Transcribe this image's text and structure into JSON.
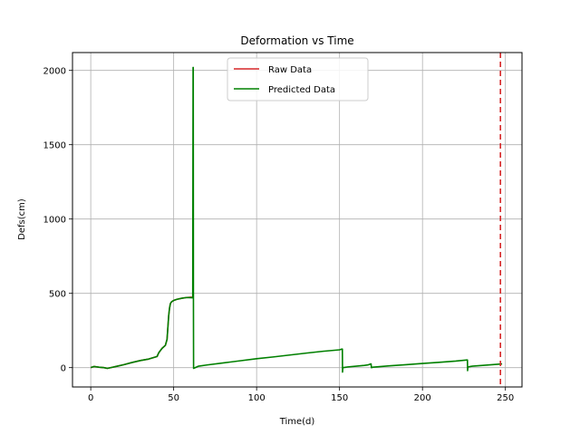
{
  "chart_data": {
    "type": "line",
    "title": "Deformation vs Time",
    "xlabel": "Time(d)",
    "ylabel": "Defs(cm)",
    "xlim": [
      -11,
      260
    ],
    "ylim": [
      -130,
      2120
    ],
    "xticks": [
      0,
      50,
      100,
      150,
      200,
      250
    ],
    "yticks": [
      0,
      500,
      1000,
      1500,
      2000
    ],
    "grid": true,
    "legend_position": "top-center",
    "series": [
      {
        "name": "Raw Data",
        "color": "#d62728",
        "x": [
          0,
          2,
          5,
          8,
          10,
          14,
          16,
          20,
          25,
          30,
          35,
          40,
          41,
          43,
          45,
          46,
          47,
          47.5,
          48,
          48.5,
          49,
          50,
          52,
          55,
          58,
          61
        ],
        "y": [
          0,
          8,
          3,
          0,
          -5,
          5,
          10,
          20,
          35,
          48,
          58,
          75,
          100,
          130,
          150,
          190,
          350,
          400,
          430,
          440,
          445,
          452,
          460,
          467,
          472,
          475
        ]
      },
      {
        "name": "Predicted Data",
        "color": "#008000",
        "x": [
          0,
          2,
          5,
          8,
          10,
          14,
          16,
          20,
          25,
          30,
          35,
          40,
          41,
          43,
          45,
          46,
          47,
          47.5,
          48,
          48.5,
          49,
          50,
          52,
          55,
          58,
          61.5,
          61.7,
          61.8,
          61.9,
          62,
          65,
          70,
          80,
          90,
          100,
          110,
          120,
          130,
          140,
          150,
          151.5,
          151.7,
          151.8,
          152,
          155,
          160,
          165,
          167,
          168,
          169,
          169.2,
          170,
          180,
          190,
          200,
          210,
          220,
          227,
          227.1,
          227.2,
          227.4,
          230,
          240,
          248
        ],
        "y": [
          0,
          8,
          3,
          0,
          -5,
          5,
          10,
          20,
          35,
          48,
          58,
          75,
          100,
          130,
          150,
          190,
          350,
          400,
          430,
          440,
          445,
          452,
          460,
          467,
          472,
          470,
          2020,
          2020,
          500,
          -5,
          10,
          18,
          32,
          46,
          60,
          72,
          85,
          98,
          110,
          120,
          125,
          125,
          -30,
          0,
          5,
          10,
          15,
          18,
          22,
          25,
          0,
          3,
          12,
          20,
          28,
          36,
          44,
          52,
          52,
          -20,
          5,
          10,
          18,
          25
        ]
      }
    ],
    "vline": {
      "x": 247,
      "color": "#d62728",
      "style": "dashed"
    }
  }
}
